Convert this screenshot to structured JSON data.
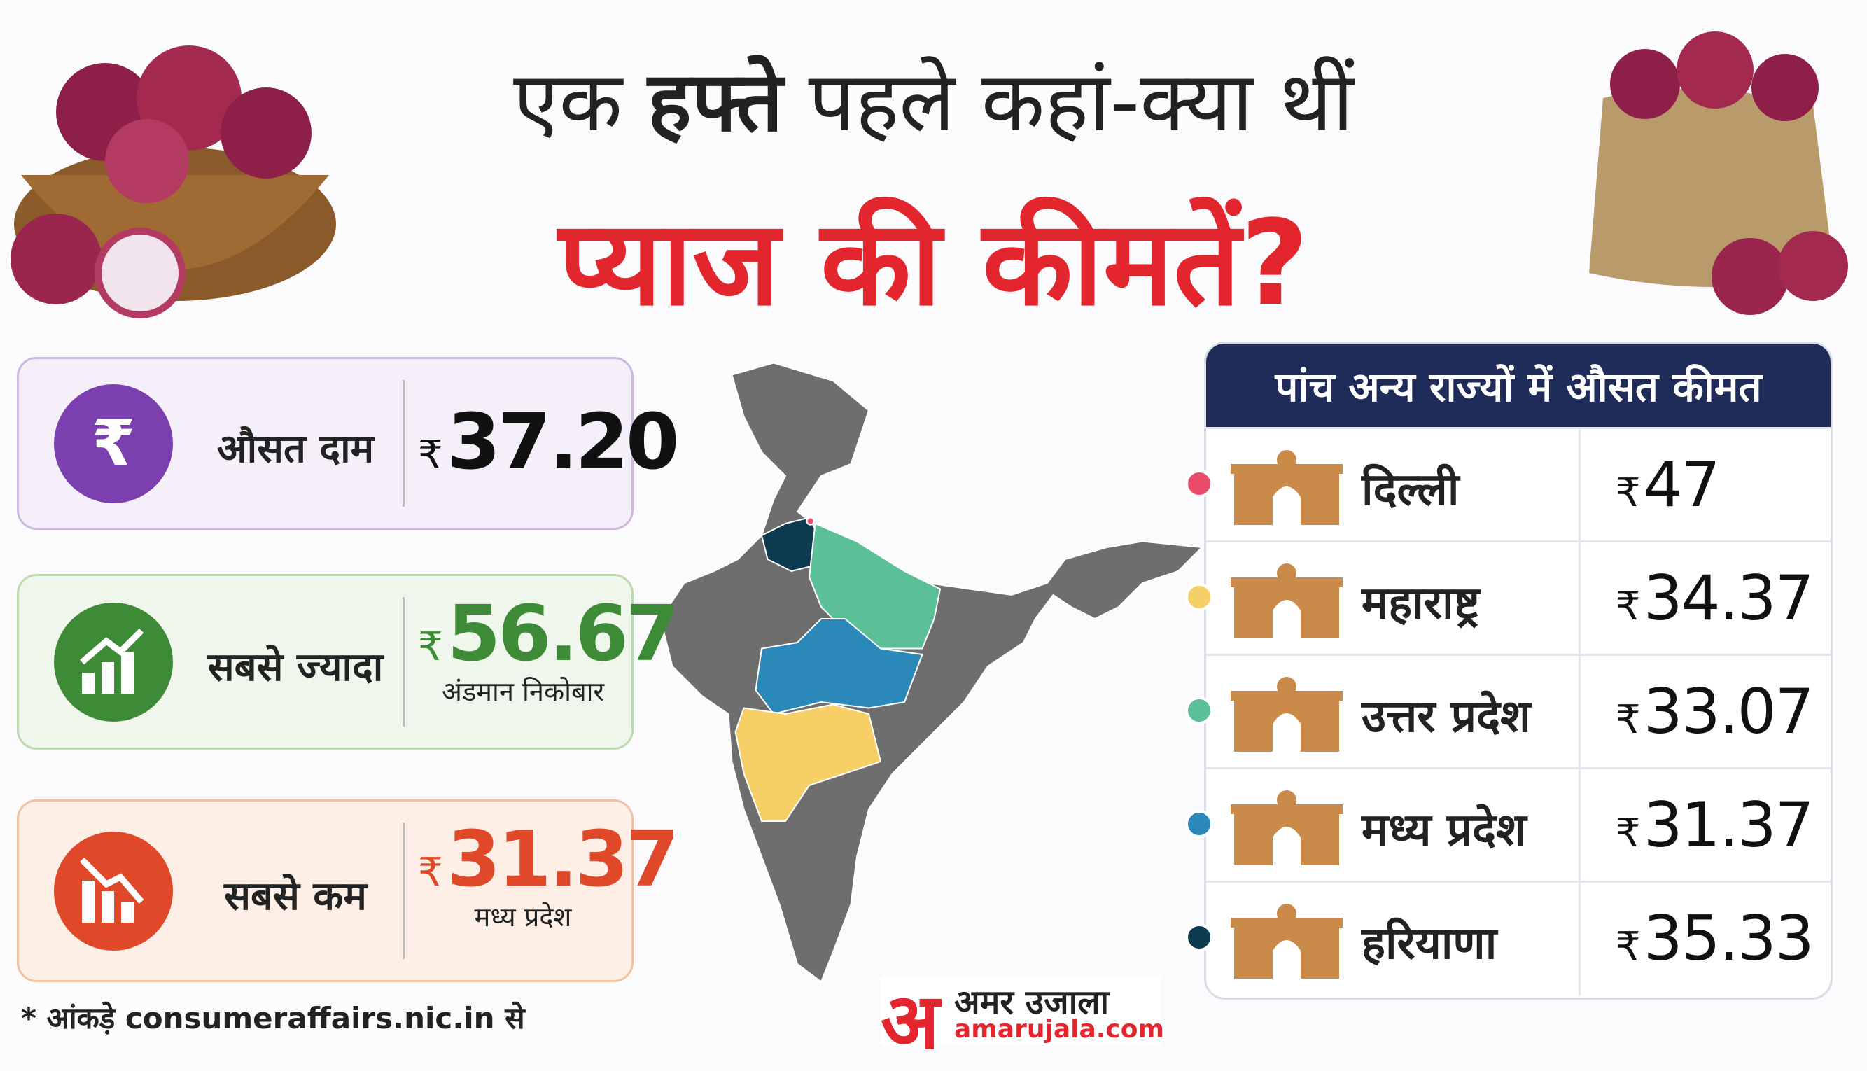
{
  "title": {
    "line1": [
      "एक",
      "हफ्ते",
      "पहले कहां-क्या थीं"
    ],
    "line2": "प्याज की कीमतें?"
  },
  "currency": "₹",
  "cards": [
    {
      "label": "औसत दाम",
      "value": "37.20"
    },
    {
      "label": "सबसे ज्यादा",
      "value": "56.67",
      "place": "अंडमान निकोबार"
    },
    {
      "label": "सबसे कम",
      "value": "31.37",
      "place": "मध्य प्रदेश"
    }
  ],
  "table": {
    "header": "पांच अन्य राज्यों में औसत कीमत",
    "rows": [
      {
        "state": "दिल्ली",
        "price": "47",
        "color": "#e94b6b"
      },
      {
        "state": "महाराष्ट्र",
        "price": "34.37",
        "color": "#f6d067"
      },
      {
        "state": "उत्तर प्रदेश",
        "price": "33.07",
        "color": "#5bbf97"
      },
      {
        "state": "मध्य प्रदेश",
        "price": "31.37",
        "color": "#2a89b8"
      },
      {
        "state": "हरियाणा",
        "price": "35.33",
        "color": "#0d3b4f"
      }
    ]
  },
  "footnote": "* आंकड़े consumeraffairs.nic.in से",
  "logo": {
    "mark": "अ",
    "name": "अमर उजाला",
    "site": "amarujala.com"
  }
}
